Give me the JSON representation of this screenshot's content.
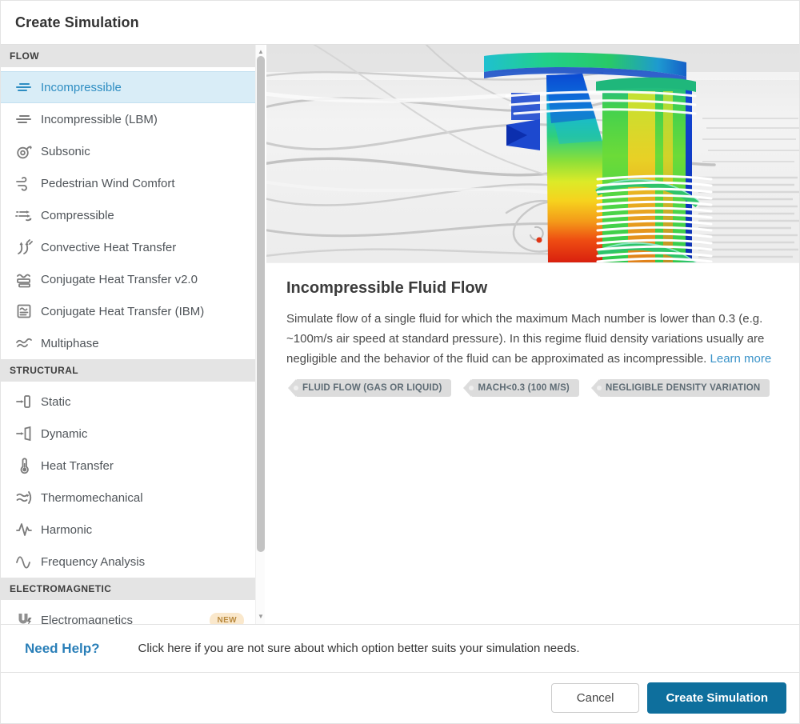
{
  "dialog": {
    "title": "Create Simulation"
  },
  "sidebar": {
    "sections": [
      {
        "label": "FLOW",
        "items": [
          {
            "label": "Incompressible",
            "icon": "streamlines-icon",
            "selected": true
          },
          {
            "label": "Incompressible (LBM)",
            "icon": "streamlines-icon"
          },
          {
            "label": "Subsonic",
            "icon": "turbo-swirl-icon"
          },
          {
            "label": "Pedestrian Wind Comfort",
            "icon": "wind-icon"
          },
          {
            "label": "Compressible",
            "icon": "compressible-arrows-icon"
          },
          {
            "label": "Convective Heat Transfer",
            "icon": "convective-heat-icon"
          },
          {
            "label": "Conjugate Heat Transfer v2.0",
            "icon": "conjugate-heat-v2-icon"
          },
          {
            "label": "Conjugate Heat Transfer (IBM)",
            "icon": "conjugate-heat-ibm-icon"
          },
          {
            "label": "Multiphase",
            "icon": "multiphase-waves-icon"
          }
        ]
      },
      {
        "label": "STRUCTURAL",
        "items": [
          {
            "label": "Static",
            "icon": "static-load-icon"
          },
          {
            "label": "Dynamic",
            "icon": "dynamic-load-icon"
          },
          {
            "label": "Heat Transfer",
            "icon": "thermometer-icon"
          },
          {
            "label": "Thermomechanical",
            "icon": "thermomechanical-icon"
          },
          {
            "label": "Harmonic",
            "icon": "harmonic-wave-icon"
          },
          {
            "label": "Frequency Analysis",
            "icon": "sine-wave-icon"
          }
        ]
      },
      {
        "label": "ELECTROMAGNETIC",
        "items": [
          {
            "label": "Electromagnetics",
            "icon": "magnet-icon",
            "badge": "NEW"
          }
        ]
      }
    ]
  },
  "scrollbar": {
    "up_arrow": "▲",
    "down_arrow": "▼"
  },
  "main": {
    "hero_alt": "cfd-simulation-rendering",
    "title": "Incompressible Fluid Flow",
    "description": "Simulate flow of a single fluid for which the maximum Mach number is lower than 0.3 (e.g. ~100m/s air speed at standard pressure). In this regime fluid density variations usually are negligible and the behavior of the fluid can be approximated as incompressible.",
    "learn_more_label": "Learn more",
    "tags": [
      "FLUID FLOW (GAS OR LIQUID)",
      "MACH<0.3 (100 M/S)",
      "NEGLIGIBLE DENSITY VARIATION"
    ]
  },
  "help": {
    "title": "Need Help?",
    "text": "Click here if you are not sure about which option better suits your simulation needs."
  },
  "actions": {
    "cancel_label": "Cancel",
    "create_label": "Create Simulation"
  },
  "colors": {
    "accent_blue": "#2d8dc2",
    "selected_bg": "#d9edf7",
    "link_blue": "#3a93c9",
    "primary_button_blue": "#0e6f9d",
    "badge_bg": "#fae8cc",
    "badge_text": "#b9893d",
    "section_header_bg": "#e4e4e4",
    "tag_bg": "#dcdcdc"
  }
}
